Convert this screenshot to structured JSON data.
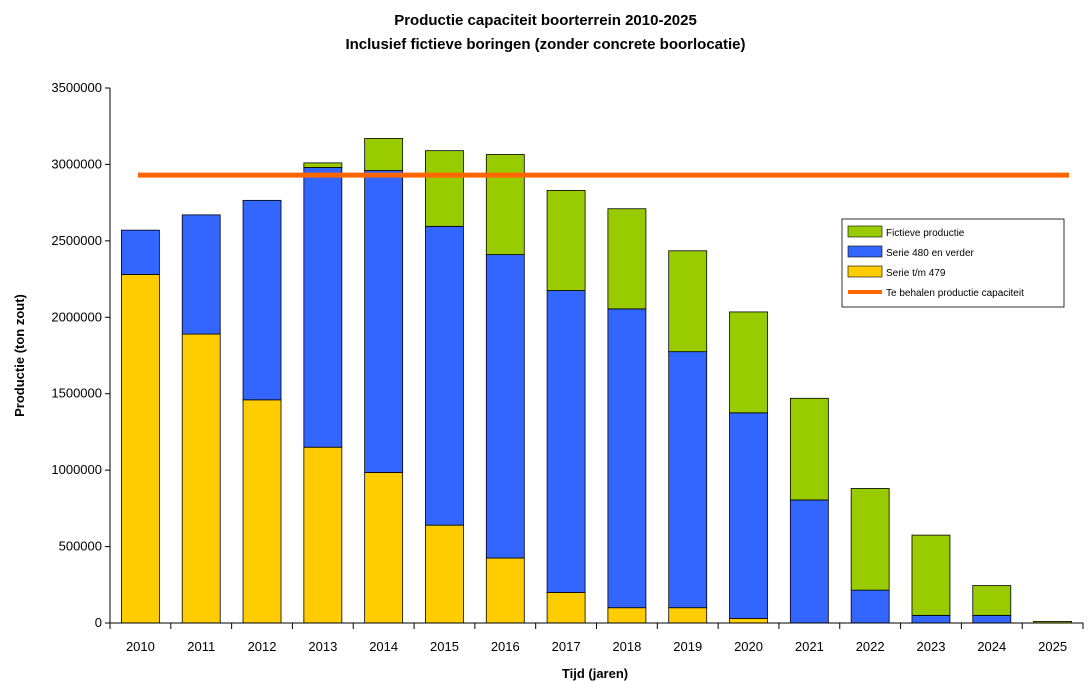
{
  "chart_data": {
    "type": "bar",
    "stacked": true,
    "title": "Productie capaciteit boorterrein 2010-2025",
    "subtitle": "Inclusief fictieve boringen (zonder concrete boorlocatie)",
    "xlabel": "Tijd (jaren)",
    "ylabel": "Productie (ton zout)",
    "ylim": [
      0,
      3500000
    ],
    "yticks": [
      0,
      500000,
      1000000,
      1500000,
      2000000,
      2500000,
      3000000,
      3500000
    ],
    "ytick_labels": [
      "0",
      "500000",
      "1000000",
      "1500000",
      "2000000",
      "2500000",
      "3000000",
      "3500000"
    ],
    "categories": [
      "2010",
      "2011",
      "2012",
      "2013",
      "2014",
      "2015",
      "2016",
      "2017",
      "2018",
      "2019",
      "2020",
      "2021",
      "2022",
      "2023",
      "2024",
      "2025"
    ],
    "series": [
      {
        "name": "Serie t/m 479",
        "color": "#FFCC00",
        "values": [
          2280000,
          1890000,
          1460000,
          1150000,
          985000,
          640000,
          425000,
          200000,
          100000,
          100000,
          30000,
          0,
          0,
          0,
          0,
          0
        ]
      },
      {
        "name": "Serie 480 en verder",
        "color": "#3366FF",
        "values": [
          290000,
          780000,
          1305000,
          1830000,
          1975000,
          1955000,
          1985000,
          1975000,
          1955000,
          1675000,
          1345000,
          805000,
          215000,
          50000,
          50000,
          0
        ]
      },
      {
        "name": "Fictieve productie",
        "color": "#99CC00",
        "values": [
          0,
          0,
          0,
          30000,
          210000,
          495000,
          655000,
          655000,
          655000,
          660000,
          660000,
          665000,
          665000,
          525000,
          195000,
          10000
        ]
      }
    ],
    "reference_line": {
      "name": "Te behalen productie capaciteit",
      "value": 2930000,
      "color": "#FF6600"
    },
    "legend": {
      "placement": "right",
      "entries": [
        {
          "label": "Fictieve productie",
          "color": "#99CC00",
          "kind": "box"
        },
        {
          "label": "Serie 480 en verder",
          "color": "#3366FF",
          "kind": "box"
        },
        {
          "label": "Serie t/m 479",
          "color": "#FFCC00",
          "kind": "box"
        },
        {
          "label": "Te behalen productie capaciteit",
          "color": "#FF6600",
          "kind": "line"
        }
      ]
    },
    "grid": false
  }
}
